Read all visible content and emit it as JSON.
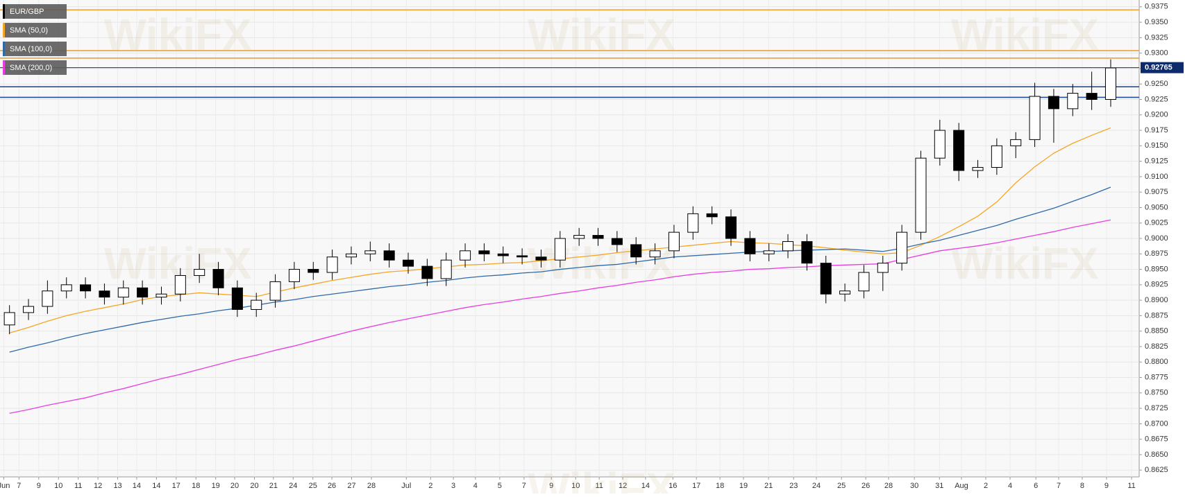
{
  "chart_data": {
    "type": "candlestick",
    "watermark": "WikiFX",
    "last_price": 0.92765,
    "last_price_color": "#0d2a6b",
    "grid": true,
    "legend": "top-left",
    "xlim": [
      -0.5,
      59.5
    ],
    "ylim": [
      0.8614,
      0.9386
    ],
    "xticks": [
      {
        "value": -0.3,
        "label": "Jun"
      },
      {
        "value": 0.5,
        "label": "7"
      },
      {
        "value": 1.54,
        "label": "9"
      },
      {
        "value": 2.58,
        "label": "10"
      },
      {
        "value": 3.62,
        "label": "11"
      },
      {
        "value": 4.66,
        "label": "12"
      },
      {
        "value": 5.7,
        "label": "13"
      },
      {
        "value": 6.7,
        "label": "14"
      },
      {
        "value": 7.74,
        "label": "14"
      },
      {
        "value": 8.78,
        "label": "17"
      },
      {
        "value": 9.82,
        "label": "18"
      },
      {
        "value": 10.86,
        "label": "19"
      },
      {
        "value": 11.86,
        "label": "20"
      },
      {
        "value": 12.9,
        "label": "20"
      },
      {
        "value": 13.9,
        "label": "21"
      },
      {
        "value": 14.94,
        "label": "24"
      },
      {
        "value": 15.98,
        "label": "25"
      },
      {
        "value": 16.98,
        "label": "26"
      },
      {
        "value": 18.02,
        "label": "27"
      },
      {
        "value": 19.06,
        "label": "28"
      },
      {
        "value": 20.9,
        "label": "Jul"
      },
      {
        "value": 22.18,
        "label": "2"
      },
      {
        "value": 23.38,
        "label": "3"
      },
      {
        "value": 24.54,
        "label": "4"
      },
      {
        "value": 25.82,
        "label": "5"
      },
      {
        "value": 27.1,
        "label": "7"
      },
      {
        "value": 28.54,
        "label": "9"
      },
      {
        "value": 29.82,
        "label": "10"
      },
      {
        "value": 31.06,
        "label": "11"
      },
      {
        "value": 32.3,
        "label": "12"
      },
      {
        "value": 33.5,
        "label": "14"
      },
      {
        "value": 34.94,
        "label": "16"
      },
      {
        "value": 36.18,
        "label": "17"
      },
      {
        "value": 37.42,
        "label": "18"
      },
      {
        "value": 38.66,
        "label": "19"
      },
      {
        "value": 39.98,
        "label": "21"
      },
      {
        "value": 41.3,
        "label": "23"
      },
      {
        "value": 42.5,
        "label": "24"
      },
      {
        "value": 43.82,
        "label": "25"
      },
      {
        "value": 45.1,
        "label": "26"
      },
      {
        "value": 46.3,
        "label": "28"
      },
      {
        "value": 47.66,
        "label": "30"
      },
      {
        "value": 48.98,
        "label": "31"
      },
      {
        "value": 50.14,
        "label": "Aug"
      },
      {
        "value": 51.42,
        "label": "2"
      },
      {
        "value": 52.7,
        "label": "4"
      },
      {
        "value": 54.06,
        "label": "6"
      },
      {
        "value": 55.26,
        "label": "7"
      },
      {
        "value": 56.5,
        "label": "8"
      },
      {
        "value": 57.78,
        "label": "9"
      },
      {
        "value": 59.1,
        "label": "11"
      }
    ],
    "yticks": [
      0.8625,
      {
        "value": 0.865,
        "label": "0.8650"
      },
      0.8675,
      {
        "value": 0.87,
        "label": "0.8700"
      },
      0.8725,
      {
        "value": 0.875,
        "label": "0.8750"
      },
      0.8775,
      {
        "value": 0.88,
        "label": "0.8800"
      },
      0.8825,
      {
        "value": 0.885,
        "label": "0.8850"
      },
      0.8875,
      {
        "value": 0.89,
        "label": "0.8900"
      },
      0.8925,
      {
        "value": 0.895,
        "label": "0.8950"
      },
      0.8975,
      {
        "value": 0.9,
        "label": "0.9000"
      },
      0.9025,
      {
        "value": 0.905,
        "label": "0.9050"
      },
      0.9075,
      {
        "value": 0.91,
        "label": "0.9100"
      },
      0.9125,
      {
        "value": 0.915,
        "label": "0.9150"
      },
      0.9175,
      {
        "value": 0.92,
        "label": "0.9200"
      },
      0.9225,
      {
        "value": 0.925,
        "label": "0.9250"
      },
      0.9275,
      {
        "value": 0.93,
        "label": "0.9300"
      },
      0.9325,
      {
        "value": 0.935,
        "label": "0.9350"
      },
      0.9375
    ],
    "levels": [
      {
        "value": 0.937,
        "color": "#f0a030"
      },
      {
        "value": 0.9304,
        "color": "#f0a030"
      },
      {
        "value": 0.9292,
        "color": "#f0a030"
      },
      {
        "value": 0.92455,
        "color": "#1f4e9c"
      },
      {
        "value": 0.92284,
        "color": "#1f4e9c"
      }
    ],
    "x": [
      0,
      1,
      2,
      3,
      4,
      5,
      6,
      7,
      8,
      9,
      10,
      11,
      12,
      13,
      14,
      15,
      16,
      17,
      18,
      19,
      20,
      21,
      22,
      23,
      24,
      25,
      26,
      27,
      28,
      29,
      30,
      31,
      32,
      33,
      34,
      35,
      36,
      37,
      38,
      39,
      40,
      41,
      42,
      43,
      44,
      45,
      46,
      47,
      48,
      49,
      50,
      51,
      52,
      53,
      54,
      55,
      56,
      57,
      58
    ],
    "candles": {
      "name": "EUR/GBP",
      "color": "#000000",
      "open": [
        0.886,
        0.888,
        0.889,
        0.8915,
        0.8925,
        0.8915,
        0.8905,
        0.892,
        0.8905,
        0.891,
        0.894,
        0.895,
        0.892,
        0.8885,
        0.89,
        0.893,
        0.895,
        0.8945,
        0.897,
        0.8975,
        0.898,
        0.8965,
        0.8955,
        0.8935,
        0.8965,
        0.898,
        0.8975,
        0.8972,
        0.897,
        0.8965,
        0.9,
        0.9005,
        0.9,
        0.899,
        0.897,
        0.898,
        0.901,
        0.904,
        0.9035,
        0.9,
        0.8975,
        0.898,
        0.8995,
        0.896,
        0.891,
        0.8915,
        0.8945,
        0.896,
        0.901,
        0.913,
        0.9175,
        0.911,
        0.9115,
        0.915,
        0.916,
        0.923,
        0.921,
        0.9235,
        0.9225
      ],
      "high": [
        0.8892,
        0.8902,
        0.8932,
        0.8937,
        0.8937,
        0.8927,
        0.8932,
        0.8932,
        0.8922,
        0.8952,
        0.8975,
        0.8962,
        0.8932,
        0.8912,
        0.8942,
        0.8962,
        0.8962,
        0.8982,
        0.8987,
        0.8995,
        0.8992,
        0.8977,
        0.8967,
        0.8977,
        0.8992,
        0.8992,
        0.8987,
        0.8984,
        0.8982,
        0.9012,
        0.9017,
        0.9017,
        0.9012,
        0.9002,
        0.8992,
        0.9022,
        0.9052,
        0.9052,
        0.9047,
        0.9012,
        0.8992,
        0.9007,
        0.9007,
        0.8972,
        0.8927,
        0.8957,
        0.8972,
        0.9022,
        0.9142,
        0.9192,
        0.9187,
        0.9127,
        0.9162,
        0.9172,
        0.9252,
        0.9242,
        0.925,
        0.927,
        0.929
      ],
      "low": [
        0.8845,
        0.8868,
        0.8878,
        0.8903,
        0.8903,
        0.8893,
        0.8893,
        0.8893,
        0.8893,
        0.8898,
        0.8928,
        0.8908,
        0.8873,
        0.8873,
        0.8888,
        0.8918,
        0.8933,
        0.8933,
        0.8958,
        0.8963,
        0.8953,
        0.8943,
        0.8923,
        0.8923,
        0.8953,
        0.8963,
        0.896,
        0.8958,
        0.8953,
        0.8953,
        0.8988,
        0.8988,
        0.8978,
        0.8958,
        0.8958,
        0.8968,
        0.8998,
        0.9023,
        0.8988,
        0.8963,
        0.8963,
        0.8968,
        0.8948,
        0.8895,
        0.8898,
        0.8903,
        0.8915,
        0.8948,
        0.8998,
        0.9118,
        0.9093,
        0.9098,
        0.9103,
        0.913,
        0.9148,
        0.9155,
        0.9198,
        0.9208,
        0.9213
      ],
      "close": [
        0.888,
        0.889,
        0.8915,
        0.8925,
        0.8915,
        0.8905,
        0.892,
        0.8905,
        0.891,
        0.894,
        0.895,
        0.892,
        0.8885,
        0.89,
        0.893,
        0.895,
        0.8945,
        0.897,
        0.8975,
        0.898,
        0.8965,
        0.8955,
        0.8935,
        0.8965,
        0.898,
        0.8975,
        0.8972,
        0.897,
        0.8965,
        0.9,
        0.9005,
        0.9,
        0.899,
        0.897,
        0.898,
        0.901,
        0.904,
        0.9035,
        0.9,
        0.8975,
        0.898,
        0.8995,
        0.896,
        0.891,
        0.8915,
        0.8945,
        0.896,
        0.901,
        0.913,
        0.9175,
        0.911,
        0.9115,
        0.915,
        0.916,
        0.923,
        0.921,
        0.9235,
        0.9225,
        0.9276
      ]
    },
    "series": [
      {
        "name": "SMA (50,0)",
        "color": "#f5a623",
        "values": [
          0.8847,
          0.8856,
          0.8866,
          0.8875,
          0.8882,
          0.8888,
          0.8894,
          0.8901,
          0.8906,
          0.8909,
          0.8912,
          0.891,
          0.8908,
          0.8906,
          0.8913,
          0.892,
          0.8926,
          0.8932,
          0.8937,
          0.8942,
          0.8946,
          0.8948,
          0.8951,
          0.8954,
          0.8957,
          0.8958,
          0.896,
          0.8961,
          0.8964,
          0.8967,
          0.897,
          0.8973,
          0.8977,
          0.898,
          0.8983,
          0.8986,
          0.8989,
          0.8992,
          0.8995,
          0.8993,
          0.8992,
          0.899,
          0.8988,
          0.8985,
          0.8981,
          0.8978,
          0.8975,
          0.8977,
          0.8989,
          0.9003,
          0.9019,
          0.9036,
          0.9059,
          0.909,
          0.9116,
          0.9138,
          0.9154,
          0.9167,
          0.9179
        ]
      },
      {
        "name": "SMA (100,0)",
        "color": "#2f6aa8",
        "values": [
          0.8816,
          0.8824,
          0.8831,
          0.8839,
          0.8846,
          0.8852,
          0.8858,
          0.8864,
          0.8869,
          0.8874,
          0.8878,
          0.8883,
          0.8887,
          0.8892,
          0.8897,
          0.8901,
          0.8906,
          0.891,
          0.8914,
          0.8918,
          0.8922,
          0.8925,
          0.8929,
          0.8932,
          0.8936,
          0.8939,
          0.8941,
          0.8944,
          0.8946,
          0.895,
          0.8953,
          0.8956,
          0.8958,
          0.8962,
          0.8966,
          0.897,
          0.8972,
          0.8974,
          0.8976,
          0.8978,
          0.8979,
          0.898,
          0.8981,
          0.8982,
          0.8983,
          0.8981,
          0.8979,
          0.8984,
          0.8991,
          0.8997,
          0.9005,
          0.9013,
          0.9021,
          0.9031,
          0.904,
          0.9049,
          0.906,
          0.9071,
          0.9083
        ]
      },
      {
        "name": "SMA (200,0)",
        "color": "#e83ee0",
        "values": [
          0.8717,
          0.8723,
          0.873,
          0.8736,
          0.8742,
          0.875,
          0.8757,
          0.8765,
          0.8773,
          0.878,
          0.8788,
          0.8796,
          0.8804,
          0.8811,
          0.8819,
          0.8826,
          0.8834,
          0.8842,
          0.885,
          0.8857,
          0.8864,
          0.887,
          0.8876,
          0.8882,
          0.8888,
          0.8893,
          0.8897,
          0.8902,
          0.8906,
          0.8911,
          0.8915,
          0.892,
          0.8924,
          0.8929,
          0.8933,
          0.8938,
          0.8942,
          0.8945,
          0.8947,
          0.895,
          0.8951,
          0.8953,
          0.8954,
          0.8956,
          0.8957,
          0.8958,
          0.8959,
          0.8966,
          0.8973,
          0.898,
          0.8984,
          0.8988,
          0.8993,
          0.8999,
          0.9005,
          0.9011,
          0.9018,
          0.9024,
          0.903
        ]
      }
    ]
  }
}
